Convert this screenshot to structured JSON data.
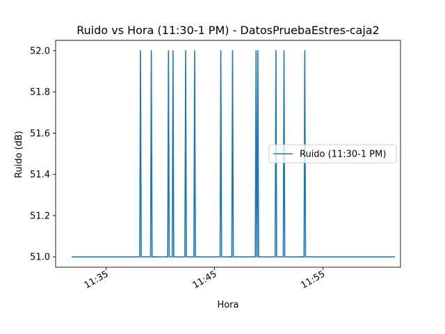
{
  "chart_data": {
    "type": "line",
    "title": "Ruido vs Hora (11:30-1 PM) - DatosPruebaEstres-caja2",
    "xlabel": "Hora",
    "ylabel": "Ruido (dB)",
    "x_unit": "minutes",
    "xlim": [
      "11:30:20",
      "12:02:10"
    ],
    "ylim": [
      50.95,
      52.05
    ],
    "x_ticks": [
      {
        "value": "11:35",
        "label": "11:35"
      },
      {
        "value": "11:45",
        "label": "11:45"
      },
      {
        "value": "11:55",
        "label": "11:55"
      }
    ],
    "y_ticks": [
      51.0,
      51.2,
      51.4,
      51.6,
      51.8,
      52.0
    ],
    "y_tick_labels": [
      "51.0",
      "51.2",
      "51.4",
      "51.6",
      "51.8",
      "52.0"
    ],
    "legend": {
      "position": "center-right",
      "entries": [
        "Ruido (11:30-1 PM)"
      ]
    },
    "grid": false,
    "series": [
      {
        "name": "Ruido (11:30-1 PM)",
        "color": "#1f77b4",
        "baseline": 51.0,
        "x_start": "11:31:50",
        "x_end": "12:01:40",
        "spikes": [
          {
            "time": "11:38:10",
            "value": 52.0
          },
          {
            "time": "11:39:10",
            "value": 52.0
          },
          {
            "time": "11:40:45",
            "value": 52.0
          },
          {
            "time": "11:41:10",
            "value": 52.0
          },
          {
            "time": "11:42:20",
            "value": 52.0
          },
          {
            "time": "11:43:10",
            "value": 52.0
          },
          {
            "time": "11:45:35",
            "value": 52.0
          },
          {
            "time": "11:46:40",
            "value": 52.0
          },
          {
            "time": "11:48:50",
            "value": 52.0
          },
          {
            "time": "11:49:00",
            "value": 52.0
          },
          {
            "time": "11:50:40",
            "value": 52.0
          },
          {
            "time": "11:51:25",
            "value": 52.0
          },
          {
            "time": "11:53:20",
            "value": 52.0
          }
        ]
      }
    ]
  }
}
